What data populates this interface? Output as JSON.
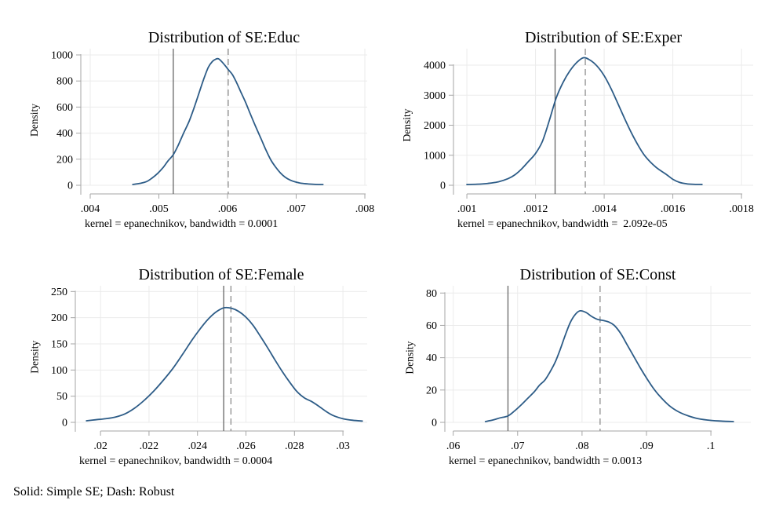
{
  "figure": {
    "footnote": "Solid: Simple SE; Dash: Robust",
    "legend": {
      "solid_meaning": "Simple SE",
      "dashed_meaning": "Robust"
    },
    "colors": {
      "curve": "#2d5c87",
      "solid_line": "#666666",
      "dashed_line": "#8c8c8c",
      "grid": "#ebebeb",
      "axis": "#a6a6a6",
      "text": "#000000",
      "background": "#ffffff"
    }
  },
  "chart_data": [
    {
      "id": "educ",
      "type": "line",
      "title": "Distribution of SE:Educ",
      "ylabel": "Density",
      "note": "kernel = epanechnikov, bandwidth = 0.0001",
      "xlim": [
        0.003863,
        0.008034
      ],
      "ylim": [
        0,
        1048
      ],
      "xticks": {
        "values": [
          0.004,
          0.005,
          0.006,
          0.007,
          0.008
        ],
        "labels": [
          ".004",
          ".005",
          ".006",
          ".007",
          ".008"
        ]
      },
      "yticks": {
        "values": [
          0,
          200,
          400,
          600,
          800,
          1000
        ],
        "labels": [
          "0",
          "200",
          "400",
          "600",
          "800",
          "1000"
        ]
      },
      "solid_x": 0.00521,
      "dashed_x": 0.00601,
      "curve": [
        [
          0.00462,
          6
        ],
        [
          0.00472,
          14
        ],
        [
          0.00482,
          28
        ],
        [
          0.0049,
          55
        ],
        [
          0.00498,
          90
        ],
        [
          0.00506,
          135
        ],
        [
          0.00513,
          185
        ],
        [
          0.00521,
          235
        ],
        [
          0.00528,
          305
        ],
        [
          0.00536,
          400
        ],
        [
          0.00544,
          490
        ],
        [
          0.00551,
          590
        ],
        [
          0.00558,
          700
        ],
        [
          0.00565,
          810
        ],
        [
          0.00572,
          905
        ],
        [
          0.00578,
          950
        ],
        [
          0.00583,
          968
        ],
        [
          0.00587,
          970
        ],
        [
          0.00592,
          946
        ],
        [
          0.00597,
          915
        ],
        [
          0.00601,
          888
        ],
        [
          0.00607,
          850
        ],
        [
          0.00613,
          790
        ],
        [
          0.00619,
          720
        ],
        [
          0.00626,
          640
        ],
        [
          0.00633,
          550
        ],
        [
          0.00641,
          450
        ],
        [
          0.00649,
          355
        ],
        [
          0.00656,
          270
        ],
        [
          0.00663,
          195
        ],
        [
          0.0067,
          140
        ],
        [
          0.00677,
          95
        ],
        [
          0.00684,
          62
        ],
        [
          0.00692,
          38
        ],
        [
          0.007,
          24
        ],
        [
          0.00708,
          15
        ],
        [
          0.00718,
          10
        ],
        [
          0.00728,
          7
        ],
        [
          0.00739,
          6
        ]
      ]
    },
    {
      "id": "exper",
      "type": "line",
      "title": "Distribution of SE:Exper",
      "ylabel": "Density",
      "note": "kernel = epanechnikov, bandwidth =  2.092e-05",
      "xlim": [
        0.000961,
        0.001834
      ],
      "ylim": [
        0,
        4550
      ],
      "xticks": {
        "values": [
          0.001,
          0.0012,
          0.0014,
          0.0016,
          0.0018
        ],
        "labels": [
          ".001",
          ".0012",
          ".0014",
          ".0016",
          ".0018"
        ]
      },
      "yticks": {
        "values": [
          0,
          1000,
          2000,
          3000,
          4000
        ],
        "labels": [
          "0",
          "1000",
          "2000",
          "3000",
          "4000"
        ]
      },
      "solid_x": 0.001257,
      "dashed_x": 0.001345,
      "curve": [
        [
          0.001,
          25
        ],
        [
          0.00103,
          35
        ],
        [
          0.00106,
          60
        ],
        [
          0.00109,
          110
        ],
        [
          0.00112,
          220
        ],
        [
          0.00114,
          350
        ],
        [
          0.00116,
          550
        ],
        [
          0.00118,
          800
        ],
        [
          0.0012,
          1060
        ],
        [
          0.00122,
          1460
        ],
        [
          0.00124,
          2150
        ],
        [
          0.00126,
          2900
        ],
        [
          0.00128,
          3420
        ],
        [
          0.0013,
          3810
        ],
        [
          0.00132,
          4090
        ],
        [
          0.00134,
          4250
        ],
        [
          0.00136,
          4160
        ],
        [
          0.00138,
          3960
        ],
        [
          0.0014,
          3650
        ],
        [
          0.00142,
          3220
        ],
        [
          0.00144,
          2720
        ],
        [
          0.00146,
          2210
        ],
        [
          0.00148,
          1730
        ],
        [
          0.0015,
          1310
        ],
        [
          0.00152,
          960
        ],
        [
          0.00155,
          610
        ],
        [
          0.00158,
          370
        ],
        [
          0.0016,
          200
        ],
        [
          0.00162,
          95
        ],
        [
          0.00164,
          50
        ],
        [
          0.00166,
          33
        ],
        [
          0.001685,
          28
        ]
      ]
    },
    {
      "id": "female",
      "type": "line",
      "title": "Distribution of SE:Female",
      "ylabel": "Density",
      "note": "kernel = epanechnikov, bandwidth = 0.0004",
      "xlim": [
        0.01896,
        0.031
      ],
      "ylim": [
        0,
        261
      ],
      "xticks": {
        "values": [
          0.02,
          0.022,
          0.024,
          0.026,
          0.028,
          0.03
        ],
        "labels": [
          ".02",
          ".022",
          ".024",
          ".026",
          ".028",
          ".03"
        ]
      },
      "yticks": {
        "values": [
          0,
          50,
          100,
          150,
          200,
          250
        ],
        "labels": [
          "0",
          "50",
          "100",
          "150",
          "200",
          "250"
        ]
      },
      "solid_x": 0.02508,
      "dashed_x": 0.02538,
      "curve": [
        [
          0.01942,
          3
        ],
        [
          0.0198,
          5
        ],
        [
          0.0202,
          7
        ],
        [
          0.0206,
          10
        ],
        [
          0.021,
          16
        ],
        [
          0.0214,
          27
        ],
        [
          0.0218,
          42
        ],
        [
          0.0222,
          60
        ],
        [
          0.0226,
          81
        ],
        [
          0.023,
          104
        ],
        [
          0.0234,
          131
        ],
        [
          0.0238,
          159
        ],
        [
          0.0242,
          184
        ],
        [
          0.0245,
          200
        ],
        [
          0.0248,
          212
        ],
        [
          0.0251,
          219
        ],
        [
          0.0254,
          218
        ],
        [
          0.0257,
          212
        ],
        [
          0.026,
          201
        ],
        [
          0.0263,
          185
        ],
        [
          0.0266,
          164
        ],
        [
          0.0269,
          142
        ],
        [
          0.0272,
          119
        ],
        [
          0.0275,
          97
        ],
        [
          0.0278,
          77
        ],
        [
          0.0281,
          59
        ],
        [
          0.0284,
          47
        ],
        [
          0.0287,
          40
        ],
        [
          0.029,
          31
        ],
        [
          0.0293,
          21
        ],
        [
          0.0296,
          13
        ],
        [
          0.03,
          7
        ],
        [
          0.0304,
          4
        ],
        [
          0.0308,
          2.5
        ]
      ]
    },
    {
      "id": "const",
      "type": "line",
      "title": "Distribution of SE:Const",
      "ylabel": "Density",
      "note": "kernel = epanechnikov, bandwidth = 0.0013",
      "xlim": [
        0.0587,
        0.1062
      ],
      "ylim": [
        0,
        84.5
      ],
      "xticks": {
        "values": [
          0.06,
          0.07,
          0.08,
          0.09,
          0.1
        ],
        "labels": [
          ".06",
          ".07",
          ".08",
          ".09",
          ".1"
        ]
      },
      "yticks": {
        "values": [
          0,
          20,
          40,
          60,
          80
        ],
        "labels": [
          "0",
          "20",
          "40",
          "60",
          "80"
        ]
      },
      "solid_x": 0.0685,
      "dashed_x": 0.0828,
      "curve": [
        [
          0.065,
          0.5
        ],
        [
          0.0662,
          1.5
        ],
        [
          0.0672,
          2.7
        ],
        [
          0.0685,
          4
        ],
        [
          0.0695,
          7
        ],
        [
          0.0706,
          11
        ],
        [
          0.0716,
          15
        ],
        [
          0.0726,
          19
        ],
        [
          0.0734,
          23
        ],
        [
          0.0742,
          26
        ],
        [
          0.075,
          31
        ],
        [
          0.0758,
          37
        ],
        [
          0.0766,
          45
        ],
        [
          0.0774,
          54
        ],
        [
          0.0782,
          62
        ],
        [
          0.079,
          67
        ],
        [
          0.0797,
          69
        ],
        [
          0.0806,
          68
        ],
        [
          0.0815,
          65.5
        ],
        [
          0.0824,
          63.7
        ],
        [
          0.0833,
          63
        ],
        [
          0.0842,
          62
        ],
        [
          0.085,
          60
        ],
        [
          0.086,
          55
        ],
        [
          0.087,
          48
        ],
        [
          0.088,
          41
        ],
        [
          0.089,
          34
        ],
        [
          0.09,
          27.5
        ],
        [
          0.091,
          21.5
        ],
        [
          0.092,
          16.5
        ],
        [
          0.0935,
          10.5
        ],
        [
          0.095,
          6.5
        ],
        [
          0.0965,
          4
        ],
        [
          0.098,
          2.3
        ],
        [
          0.1,
          1.2
        ],
        [
          0.102,
          0.7
        ],
        [
          0.1035,
          0.5
        ]
      ]
    }
  ]
}
